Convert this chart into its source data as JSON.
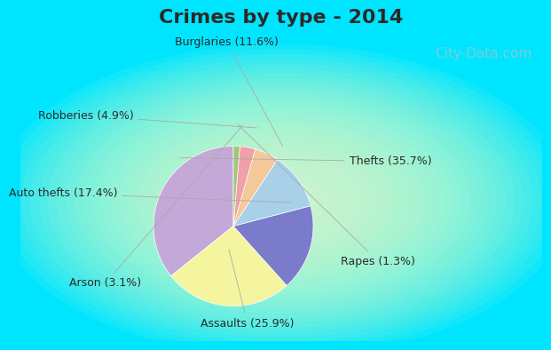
{
  "title": "Crimes by type - 2014",
  "labels": [
    "Thefts",
    "Assaults",
    "Auto thefts",
    "Burglaries",
    "Robberies",
    "Arson",
    "Rapes"
  ],
  "values": [
    35.7,
    25.9,
    17.4,
    11.6,
    4.9,
    3.1,
    1.3
  ],
  "colors": [
    "#c4a8d8",
    "#f5f5a0",
    "#7b7bcc",
    "#a8d0e8",
    "#f5c89a",
    "#f0a0a8",
    "#a0c878"
  ],
  "label_texts": [
    "Thefts (35.7%)",
    "Assaults (25.9%)",
    "Auto thefts (17.4%)",
    "Burglaries (11.6%)",
    "Robberies (4.9%)",
    "Arson (3.1%)",
    "Rapes (1.3%)"
  ],
  "background_border": "#00e5ff",
  "background_inner": "#c8eedd",
  "title_fontsize": 16,
  "title_color": "#2a2a2a",
  "label_fontsize": 9,
  "label_color": "#2a2a2a",
  "startangle": 90,
  "watermark": "City-Data.com",
  "watermark_color": "#90c8cc",
  "watermark_fontsize": 11
}
